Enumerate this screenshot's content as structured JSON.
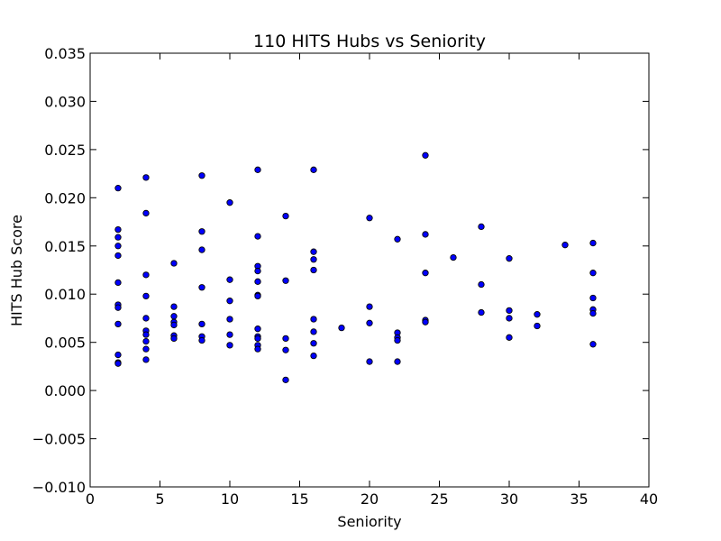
{
  "chart_data": {
    "type": "scatter",
    "title": "110 HITS Hubs vs Seniority",
    "xlabel": "Seniority",
    "ylabel": "HITS Hub Score",
    "xlim": [
      0,
      40
    ],
    "ylim": [
      -0.01,
      0.035
    ],
    "xticks": [
      "0",
      "5",
      "10",
      "15",
      "20",
      "25",
      "30",
      "35",
      "40"
    ],
    "xtick_values": [
      0,
      5,
      10,
      15,
      20,
      25,
      30,
      35,
      40
    ],
    "yticks": [
      "−0.010",
      "−0.005",
      "0.000",
      "0.005",
      "0.010",
      "0.015",
      "0.020",
      "0.025",
      "0.030",
      "0.035"
    ],
    "ytick_values": [
      -0.01,
      -0.005,
      0.0,
      0.005,
      0.01,
      0.015,
      0.02,
      0.025,
      0.03,
      0.035
    ],
    "grid": false,
    "marker_color": "#0000ff",
    "marker_edge_color": "#000000",
    "series": [
      {
        "points": [
          [
            2,
            0.021
          ],
          [
            2,
            0.0167
          ],
          [
            2,
            0.0159
          ],
          [
            2,
            0.015
          ],
          [
            2,
            0.014
          ],
          [
            2,
            0.0112
          ],
          [
            2,
            0.0089
          ],
          [
            2,
            0.0086
          ],
          [
            2,
            0.0069
          ],
          [
            2,
            0.0037
          ],
          [
            2,
            0.0029
          ],
          [
            2,
            0.0028
          ],
          [
            4,
            0.0221
          ],
          [
            4,
            0.0184
          ],
          [
            4,
            0.012
          ],
          [
            4,
            0.0098
          ],
          [
            4,
            0.0075
          ],
          [
            4,
            0.0062
          ],
          [
            4,
            0.0058
          ],
          [
            4,
            0.0051
          ],
          [
            4,
            0.0043
          ],
          [
            4,
            0.0032
          ],
          [
            6,
            0.0132
          ],
          [
            6,
            0.0087
          ],
          [
            6,
            0.0077
          ],
          [
            6,
            0.0071
          ],
          [
            6,
            0.0068
          ],
          [
            6,
            0.0057
          ],
          [
            6,
            0.0054
          ],
          [
            8,
            0.0223
          ],
          [
            8,
            0.0165
          ],
          [
            8,
            0.0146
          ],
          [
            8,
            0.0107
          ],
          [
            8,
            0.0069
          ],
          [
            8,
            0.0056
          ],
          [
            8,
            0.0052
          ],
          [
            10,
            0.0195
          ],
          [
            10,
            0.0115
          ],
          [
            10,
            0.0093
          ],
          [
            10,
            0.0074
          ],
          [
            10,
            0.0058
          ],
          [
            10,
            0.0047
          ],
          [
            12,
            0.0229
          ],
          [
            12,
            0.016
          ],
          [
            12,
            0.0129
          ],
          [
            12,
            0.0124
          ],
          [
            12,
            0.0113
          ],
          [
            12,
            0.0099
          ],
          [
            12,
            0.0098
          ],
          [
            12,
            0.0064
          ],
          [
            12,
            0.0056
          ],
          [
            12,
            0.0054
          ],
          [
            12,
            0.0047
          ],
          [
            12,
            0.0043
          ],
          [
            14,
            0.0181
          ],
          [
            14,
            0.0114
          ],
          [
            14,
            0.0054
          ],
          [
            14,
            0.0042
          ],
          [
            14,
            0.0011
          ],
          [
            16,
            0.0229
          ],
          [
            16,
            0.0144
          ],
          [
            16,
            0.0136
          ],
          [
            16,
            0.0125
          ],
          [
            16,
            0.0074
          ],
          [
            16,
            0.0061
          ],
          [
            16,
            0.0049
          ],
          [
            16,
            0.0036
          ],
          [
            18,
            0.0065
          ],
          [
            20,
            0.0179
          ],
          [
            20,
            0.0087
          ],
          [
            20,
            0.007
          ],
          [
            20,
            0.003
          ],
          [
            22,
            0.0157
          ],
          [
            22,
            0.006
          ],
          [
            22,
            0.0055
          ],
          [
            22,
            0.0052
          ],
          [
            22,
            0.003
          ],
          [
            24,
            0.0244
          ],
          [
            24,
            0.0162
          ],
          [
            24,
            0.0122
          ],
          [
            24,
            0.0073
          ],
          [
            24,
            0.0071
          ],
          [
            26,
            0.0138
          ],
          [
            28,
            0.017
          ],
          [
            28,
            0.011
          ],
          [
            28,
            0.0081
          ],
          [
            30,
            0.0137
          ],
          [
            30,
            0.0083
          ],
          [
            30,
            0.0075
          ],
          [
            30,
            0.0055
          ],
          [
            32,
            0.0079
          ],
          [
            32,
            0.0067
          ],
          [
            34,
            0.0151
          ],
          [
            36,
            0.0153
          ],
          [
            36,
            0.0122
          ],
          [
            36,
            0.0096
          ],
          [
            36,
            0.0084
          ],
          [
            36,
            0.008
          ],
          [
            36,
            0.0048
          ]
        ]
      }
    ]
  }
}
